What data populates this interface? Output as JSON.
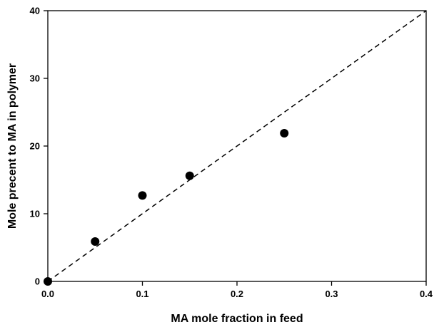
{
  "chart_data": {
    "type": "scatter",
    "title": "",
    "xlabel": "MA mole fraction in feed",
    "ylabel": "Mole precent to MA in polymer",
    "xlim": [
      0,
      0.4
    ],
    "ylim": [
      0,
      40
    ],
    "x_ticks": [
      "0.0",
      "0.1",
      "0.2",
      "0.3",
      "0.4"
    ],
    "y_ticks": [
      "0",
      "10",
      "20",
      "30",
      "40"
    ],
    "grid": false,
    "legend": "none",
    "series": [
      {
        "marker": "filled-circle",
        "color": "#000000",
        "points": [
          {
            "x": 0.0,
            "y": 0.0
          },
          {
            "x": 0.05,
            "y": 5.9
          },
          {
            "x": 0.1,
            "y": 12.7
          },
          {
            "x": 0.15,
            "y": 15.6
          },
          {
            "x": 0.25,
            "y": 21.9
          }
        ]
      }
    ],
    "reference_line": {
      "style": "dashed",
      "color": "#000000",
      "from": {
        "x": 0.0,
        "y": 0.0
      },
      "to": {
        "x": 0.4,
        "y": 40
      }
    }
  }
}
